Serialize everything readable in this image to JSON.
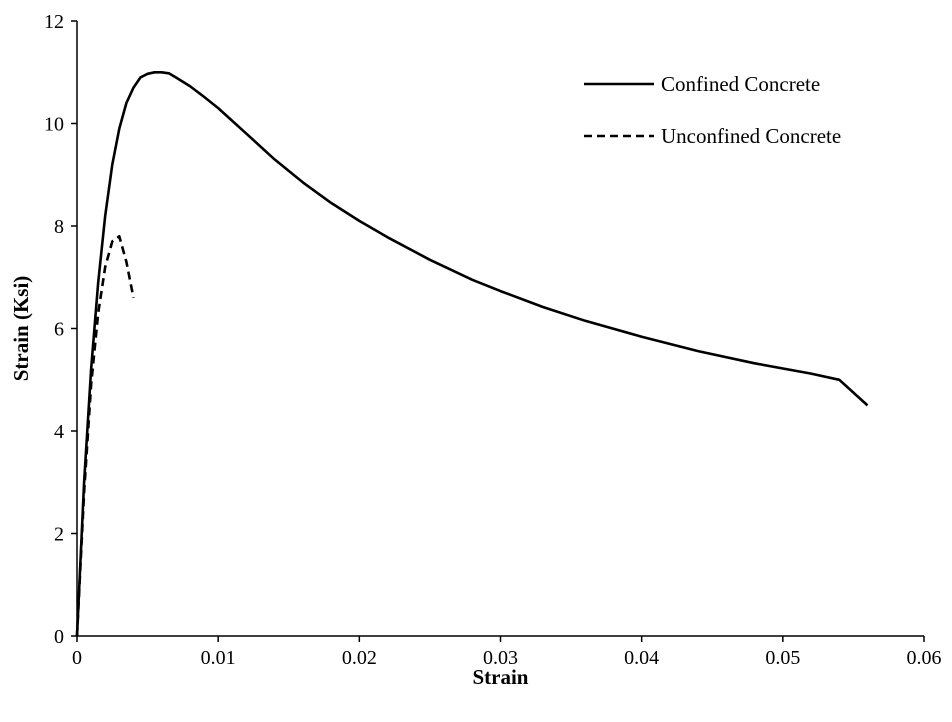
{
  "chart_data": {
    "type": "line",
    "title": "",
    "xlabel": "Strain",
    "ylabel": "Strain (Ksi)",
    "xlim": [
      0,
      0.06
    ],
    "ylim": [
      0,
      12
    ],
    "xticks": [
      0,
      0.01,
      0.02,
      0.03,
      0.04,
      0.05,
      0.06
    ],
    "xtick_labels": [
      "0",
      "0.01",
      "0.02",
      "0.03",
      "0.04",
      "0.05",
      "0.06"
    ],
    "yticks": [
      0,
      2,
      4,
      6,
      8,
      10,
      12
    ],
    "ytick_labels": [
      "0",
      "2",
      "4",
      "6",
      "8",
      "10",
      "12"
    ],
    "grid": false,
    "legend_position": "top-right",
    "series": [
      {
        "name": "Confined Concrete",
        "style": "solid",
        "color": "#000000",
        "x": [
          0,
          0.0005,
          0.001,
          0.0015,
          0.002,
          0.0025,
          0.003,
          0.0035,
          0.004,
          0.0045,
          0.005,
          0.0055,
          0.006,
          0.0065,
          0.007,
          0.008,
          0.009,
          0.01,
          0.012,
          0.014,
          0.016,
          0.018,
          0.02,
          0.022,
          0.025,
          0.028,
          0.03,
          0.033,
          0.036,
          0.04,
          0.044,
          0.048,
          0.052,
          0.054,
          0.056
        ],
        "y": [
          0,
          3.0,
          5.2,
          6.9,
          8.2,
          9.2,
          9.9,
          10.4,
          10.7,
          10.9,
          10.97,
          11.0,
          11.0,
          10.98,
          10.9,
          10.73,
          10.52,
          10.3,
          9.8,
          9.3,
          8.85,
          8.45,
          8.1,
          7.78,
          7.34,
          6.95,
          6.73,
          6.42,
          6.15,
          5.84,
          5.56,
          5.32,
          5.12,
          5.0,
          4.5
        ]
      },
      {
        "name": "Unconfined Concrete",
        "style": "dashed",
        "color": "#000000",
        "x": [
          0,
          0.0005,
          0.001,
          0.0015,
          0.002,
          0.0025,
          0.003,
          0.0035,
          0.004
        ],
        "y": [
          0,
          2.8,
          4.9,
          6.3,
          7.2,
          7.7,
          7.8,
          7.3,
          6.6
        ]
      }
    ]
  }
}
